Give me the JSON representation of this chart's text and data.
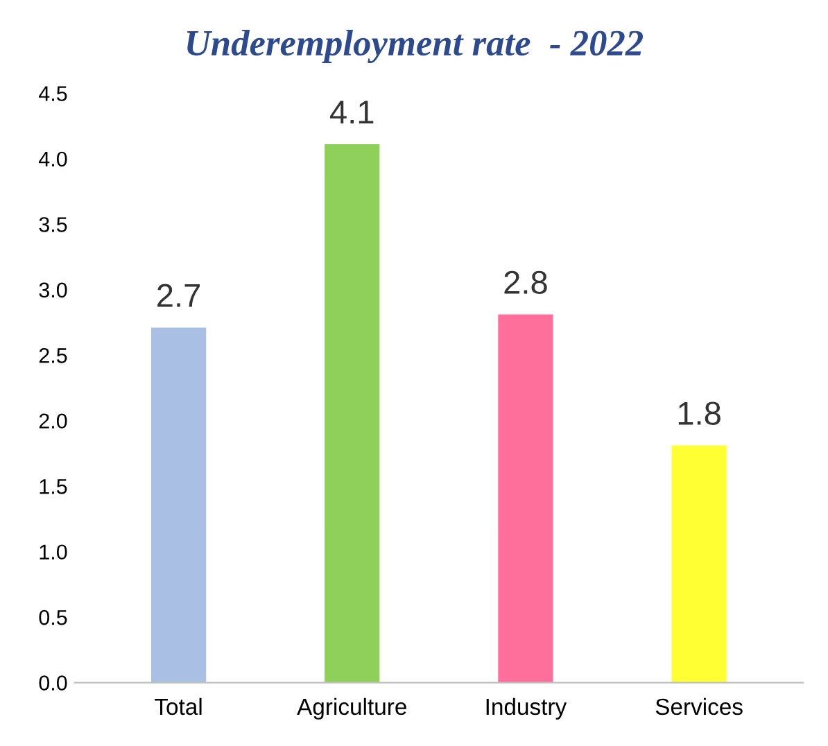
{
  "chart_data": {
    "type": "bar",
    "title": "Underemployment rate  - 2022",
    "categories": [
      "Total",
      "Agriculture",
      "Industry",
      "Services"
    ],
    "values": [
      2.7,
      4.1,
      2.8,
      1.8
    ],
    "colors": [
      "#a9bfe4",
      "#8fd05a",
      "#ff6f9c",
      "#ffff33"
    ],
    "ylim": [
      0.0,
      4.5
    ],
    "yticks": [
      {
        "value": 0,
        "label": "0.0"
      },
      0.5,
      {
        "value": 1,
        "label": "1.0"
      },
      1.5,
      {
        "value": 2,
        "label": "2.0"
      },
      2.5,
      {
        "value": 3,
        "label": "3.0"
      },
      3.5,
      {
        "value": 4,
        "label": "4.0"
      },
      4.5
    ],
    "data_labels": true,
    "grid": false,
    "legend": false
  }
}
